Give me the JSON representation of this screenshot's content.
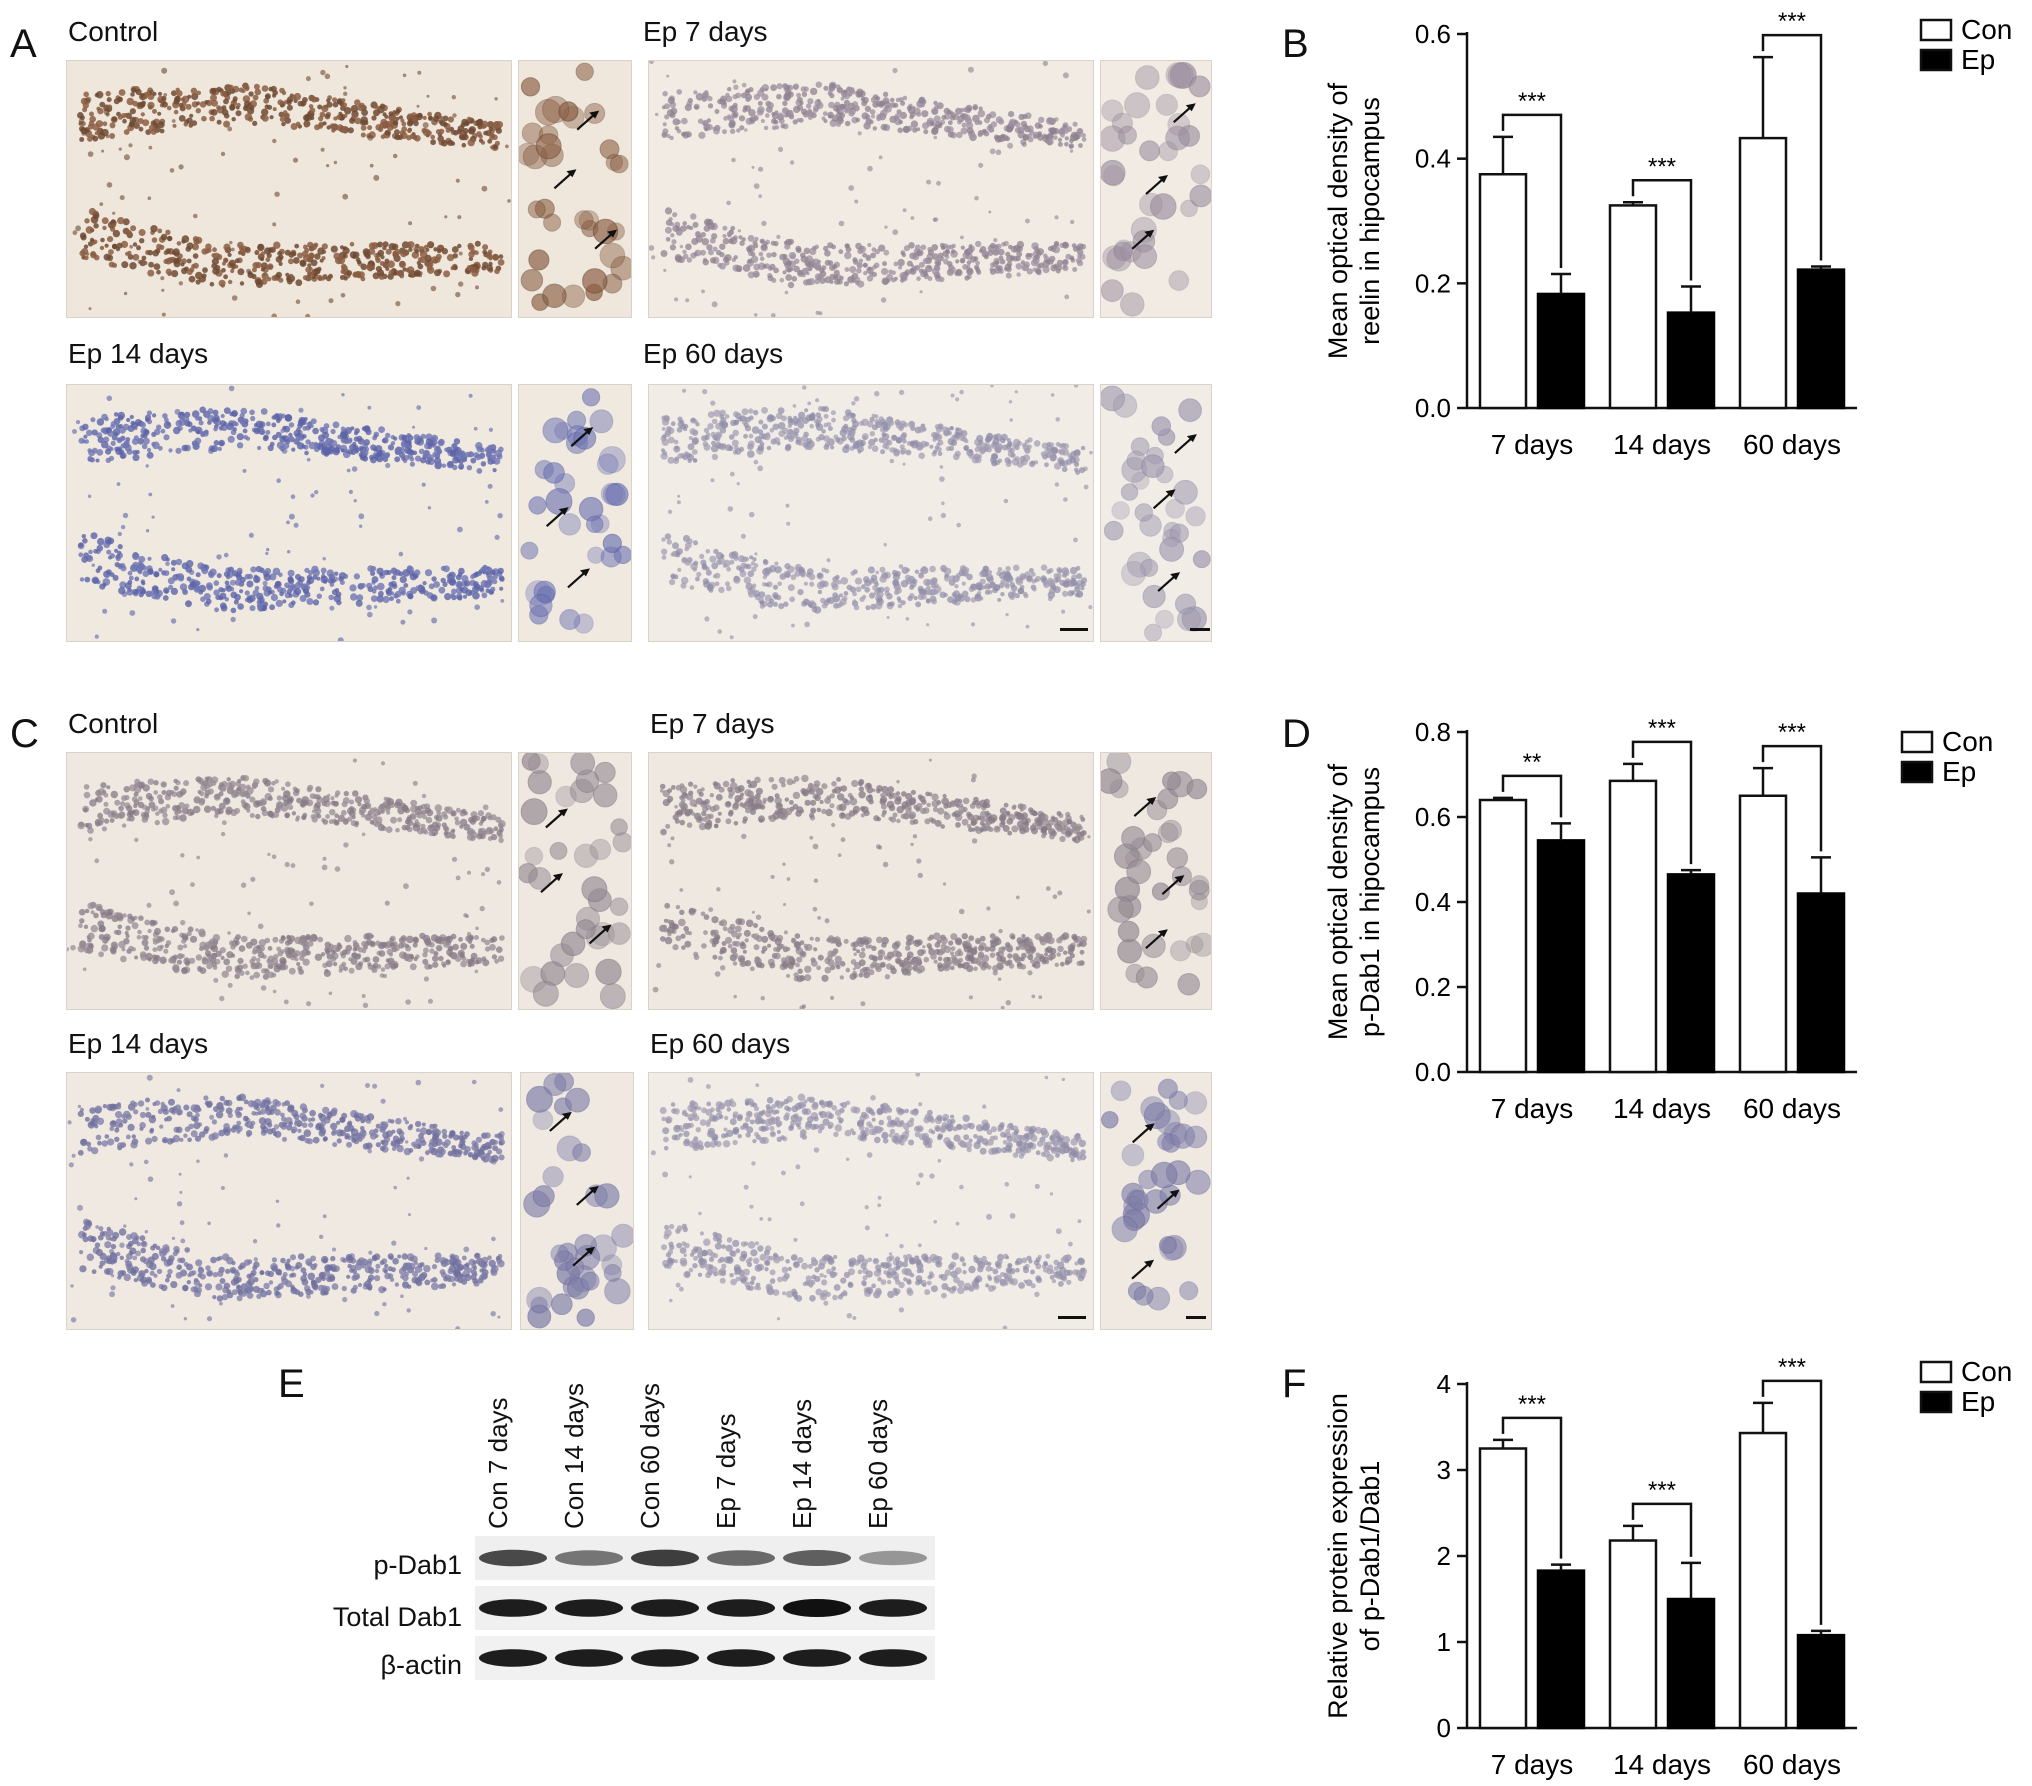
{
  "panels": {
    "A": {
      "letter": "A",
      "images": [
        {
          "label": "Control",
          "tone": "brown"
        },
        {
          "label": "Ep 7 days",
          "tone": "light"
        },
        {
          "label": "Ep 14 days",
          "tone": "blue"
        },
        {
          "label": "Ep 60 days",
          "tone": "pale"
        }
      ]
    },
    "C": {
      "letter": "C",
      "images": [
        {
          "label": "Control",
          "tone": "grey"
        },
        {
          "label": "Ep 7 days",
          "tone": "grey"
        },
        {
          "label": "Ep 14 days",
          "tone": "greyblue"
        },
        {
          "label": "Ep 60 days",
          "tone": "pale"
        }
      ]
    },
    "E": {
      "letter": "E",
      "lanes": [
        "Con 7 days",
        "Con 14 days",
        "Con 60 days",
        "Ep 7 days",
        "Ep 14 days",
        "Ep 60 days"
      ],
      "rows": [
        "p-Dab1",
        "Total Dab1",
        "β-actin"
      ]
    }
  },
  "chart_data": [
    {
      "panel": "B",
      "type": "bar",
      "ylabel_line1": "Mean optical density of",
      "ylabel_line2": "reelin in hipocampus",
      "categories": [
        "7 days",
        "14 days",
        "60 days"
      ],
      "series": [
        {
          "name": "Con",
          "values": [
            0.375,
            0.325,
            0.433
          ],
          "errors": [
            0.06,
            0.005,
            0.13
          ]
        },
        {
          "name": "Ep",
          "values": [
            0.183,
            0.153,
            0.222
          ],
          "errors": [
            0.032,
            0.042,
            0.005
          ]
        }
      ],
      "significance": [
        "***",
        "***",
        "***"
      ],
      "ylim": [
        0,
        0.6
      ],
      "yticks": [
        "0.0",
        "0.2",
        "0.4",
        "0.6"
      ],
      "legend": [
        "Con",
        "Ep"
      ],
      "legend_position": "top-right"
    },
    {
      "panel": "D",
      "type": "bar",
      "ylabel_line1": "Mean optical density of",
      "ylabel_line2": "p-Dab1 in hipocampus",
      "categories": [
        "7 days",
        "14 days",
        "60 days"
      ],
      "series": [
        {
          "name": "Con",
          "values": [
            0.64,
            0.685,
            0.65
          ],
          "errors": [
            0.005,
            0.04,
            0.065
          ]
        },
        {
          "name": "Ep",
          "values": [
            0.545,
            0.465,
            0.42
          ],
          "errors": [
            0.04,
            0.01,
            0.085
          ]
        }
      ],
      "significance": [
        "**",
        "***",
        "***"
      ],
      "ylim": [
        0,
        0.8
      ],
      "yticks": [
        "0.0",
        "0.2",
        "0.4",
        "0.6",
        "0.8"
      ],
      "legend": [
        "Con",
        "Ep"
      ],
      "legend_position": "top-right"
    },
    {
      "panel": "F",
      "type": "bar",
      "ylabel_line1": "Relative protein expression",
      "ylabel_line2": "of p-Dab1/Dab1",
      "categories": [
        "7 days",
        "14 days",
        "60 days"
      ],
      "series": [
        {
          "name": "Con",
          "values": [
            3.25,
            2.18,
            3.43
          ],
          "errors": [
            0.1,
            0.17,
            0.35
          ]
        },
        {
          "name": "Ep",
          "values": [
            1.83,
            1.5,
            1.08
          ],
          "errors": [
            0.07,
            0.42,
            0.05
          ]
        }
      ],
      "significance": [
        "***",
        "***",
        "***"
      ],
      "ylim": [
        0,
        4
      ],
      "yticks": [
        "0",
        "1",
        "2",
        "3",
        "4"
      ],
      "legend": [
        "Con",
        "Ep"
      ],
      "legend_position": "top-right"
    }
  ]
}
